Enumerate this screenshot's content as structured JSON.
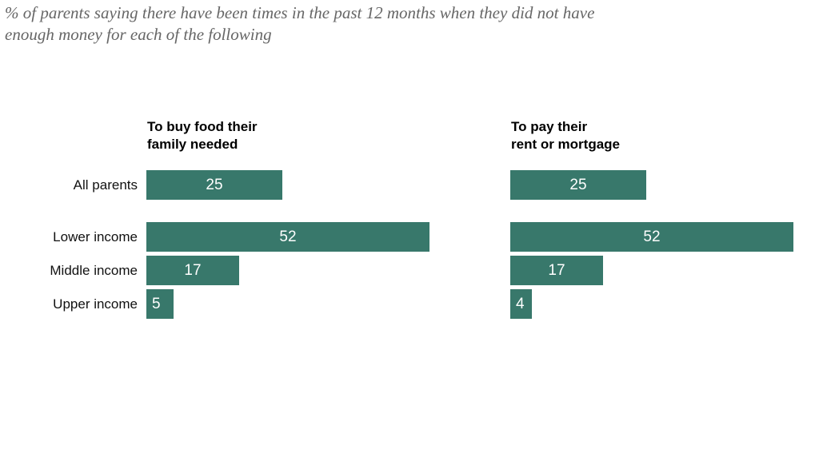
{
  "title_lines": [
    "% of parents saying there have been times in the past 12 months when they did not have",
    "enough money for each of the following"
  ],
  "panels": [
    {
      "header": [
        "To buy food their",
        "family needed"
      ]
    },
    {
      "header": [
        "To pay their",
        "rent or mortgage"
      ]
    }
  ],
  "chart_data": {
    "type": "bar",
    "orientation": "horizontal",
    "title": "% of parents saying there have been times in the past 12 months when they did not have enough money for each of the following",
    "categories": [
      "All parents",
      "Lower income",
      "Middle income",
      "Upper income"
    ],
    "series": [
      {
        "name": "To buy food their family needed",
        "values": [
          25,
          52,
          17,
          5
        ]
      },
      {
        "name": "To pay their rent or mortgage",
        "values": [
          25,
          52,
          17,
          4
        ]
      }
    ],
    "xlim": [
      0,
      55
    ],
    "grid": false,
    "legend_position": "none",
    "bar_color": "#38786B",
    "value_label_color": "#ffffff",
    "title_color": "#666666",
    "label_color": "#111111"
  }
}
